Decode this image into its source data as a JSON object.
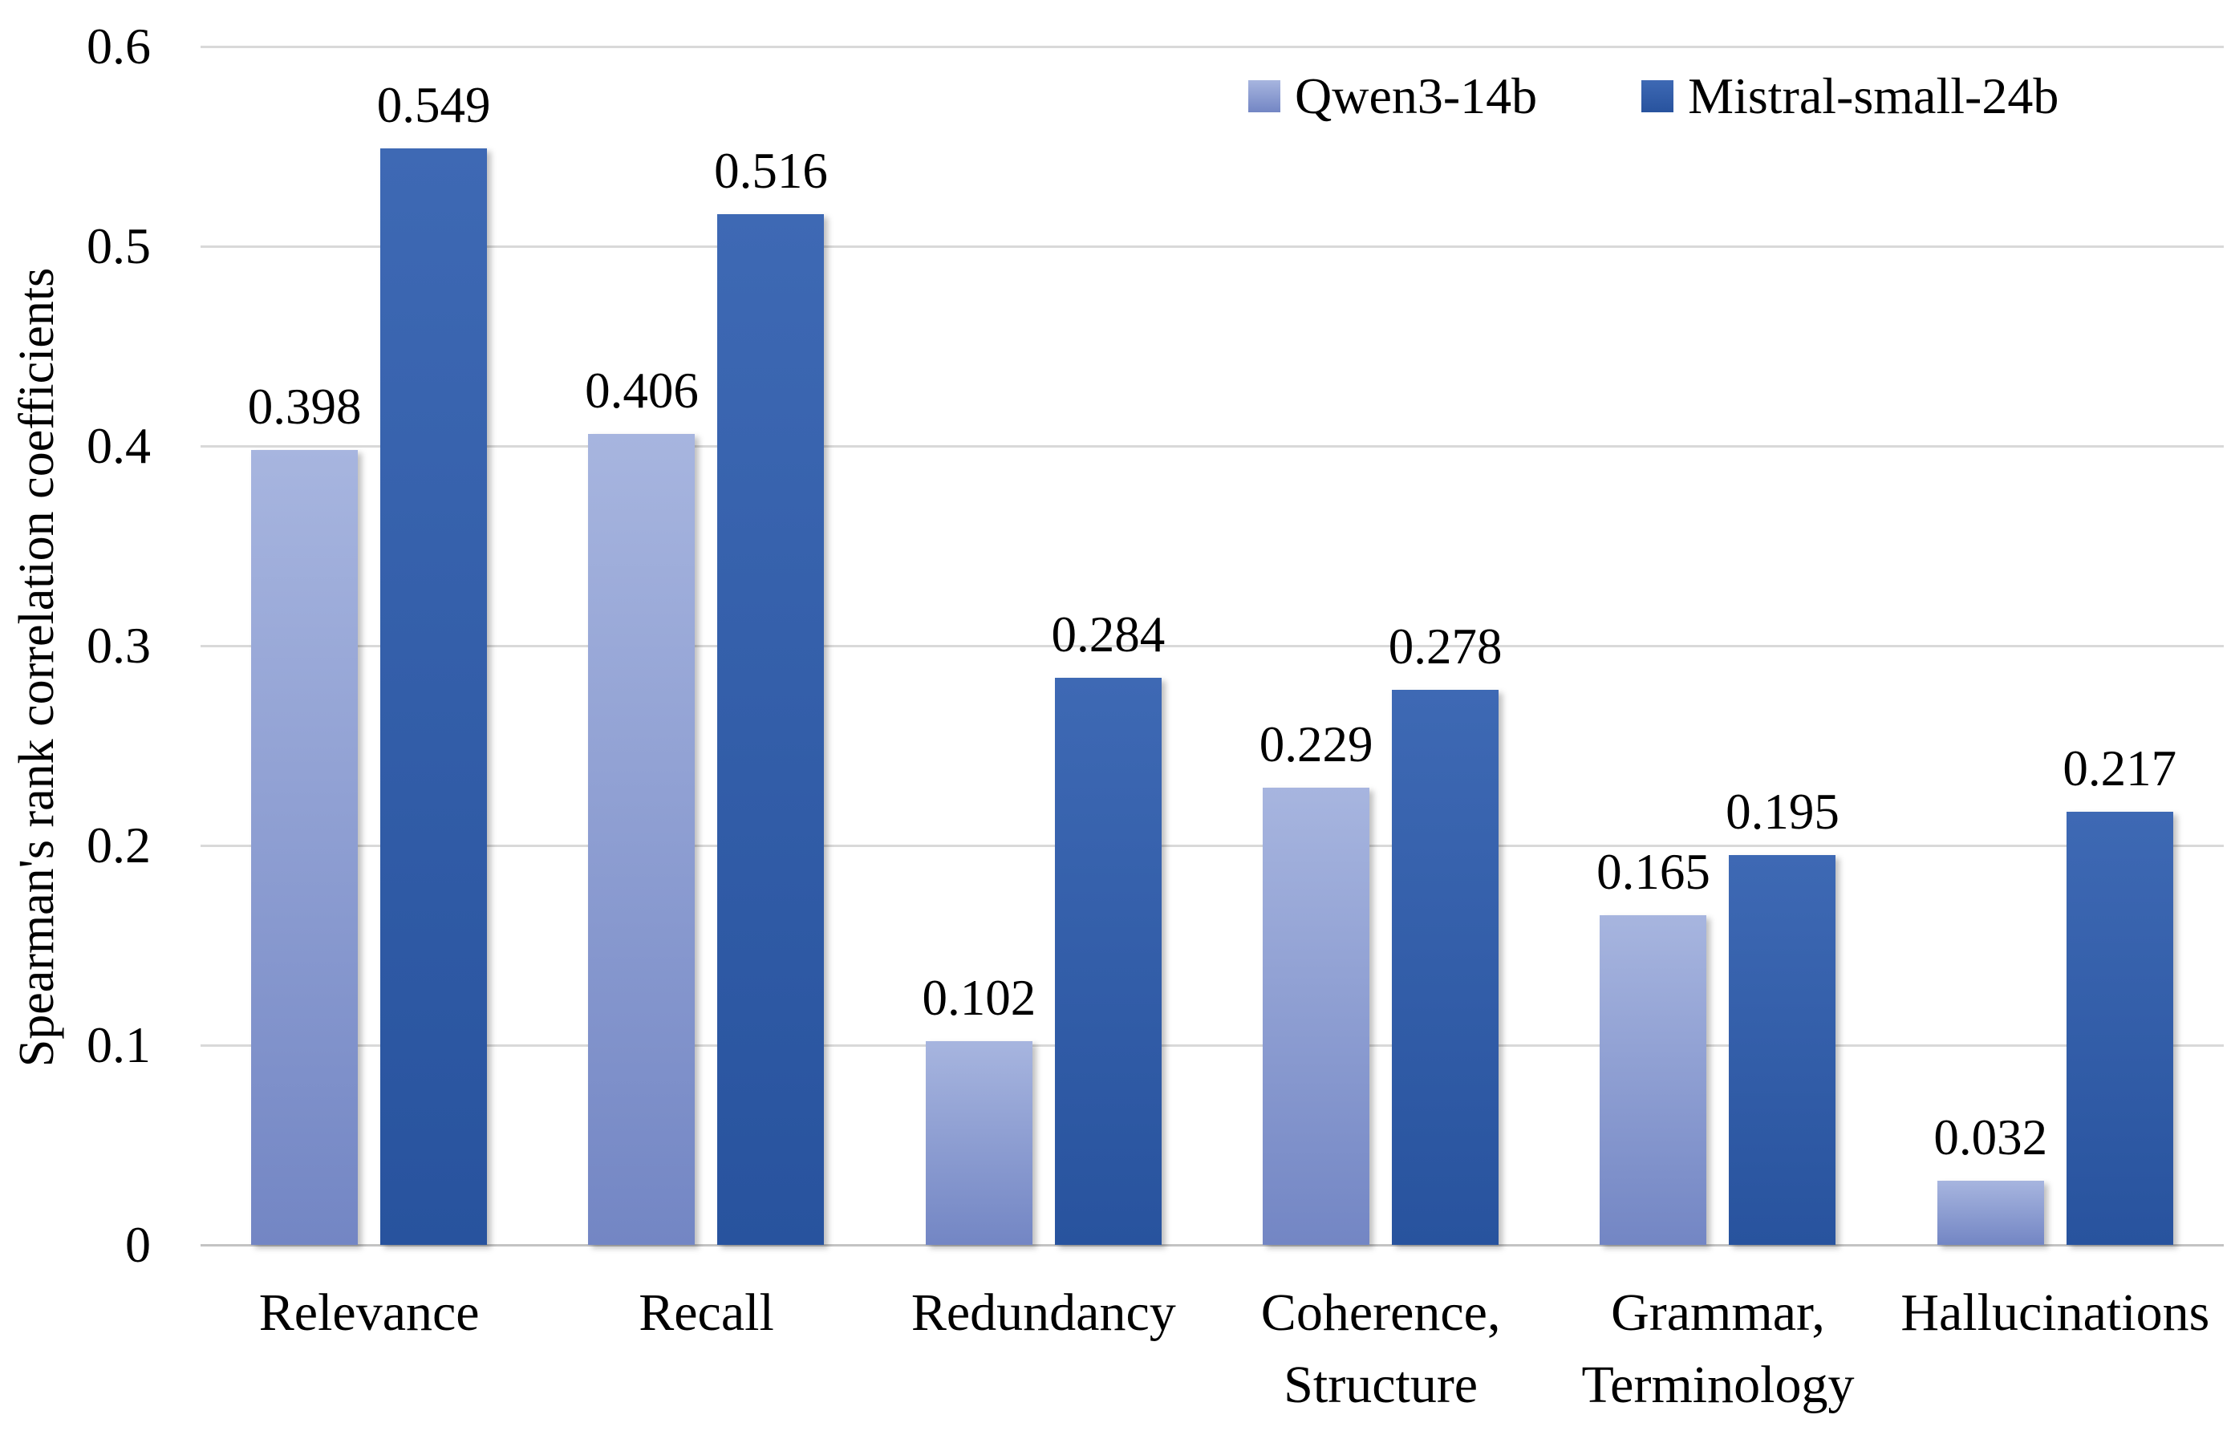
{
  "chart_data": {
    "type": "bar",
    "title": "",
    "xlabel": "",
    "ylabel": "Spearman's rank correlation coefficients",
    "ylim": [
      0,
      0.6
    ],
    "yticks": [
      "0",
      "0.1",
      "0.2",
      "0.3",
      "0.4",
      "0.5",
      "0.6"
    ],
    "grid": "horizontal",
    "gridline_color": "#d9d9d9",
    "axis_line_color": "#c3c3c3",
    "legend_position": "top-right",
    "value_labels": true,
    "categories": [
      "Relevance",
      "Recall",
      "Redundancy",
      "Coherence,\nStructure",
      "Grammar,\nTerminology",
      "Hallucinations"
    ],
    "series": [
      {
        "name": "Qwen3-14b",
        "values": [
          0.398,
          0.406,
          0.102,
          0.229,
          0.165,
          0.032
        ],
        "color_top": "#a7b5df",
        "color_bottom": "#7386c4"
      },
      {
        "name": "Mistral-small-24b",
        "values": [
          0.549,
          0.516,
          0.284,
          0.278,
          0.195,
          0.217
        ],
        "color_top": "#3e69b4",
        "color_bottom": "#28539e"
      }
    ]
  }
}
